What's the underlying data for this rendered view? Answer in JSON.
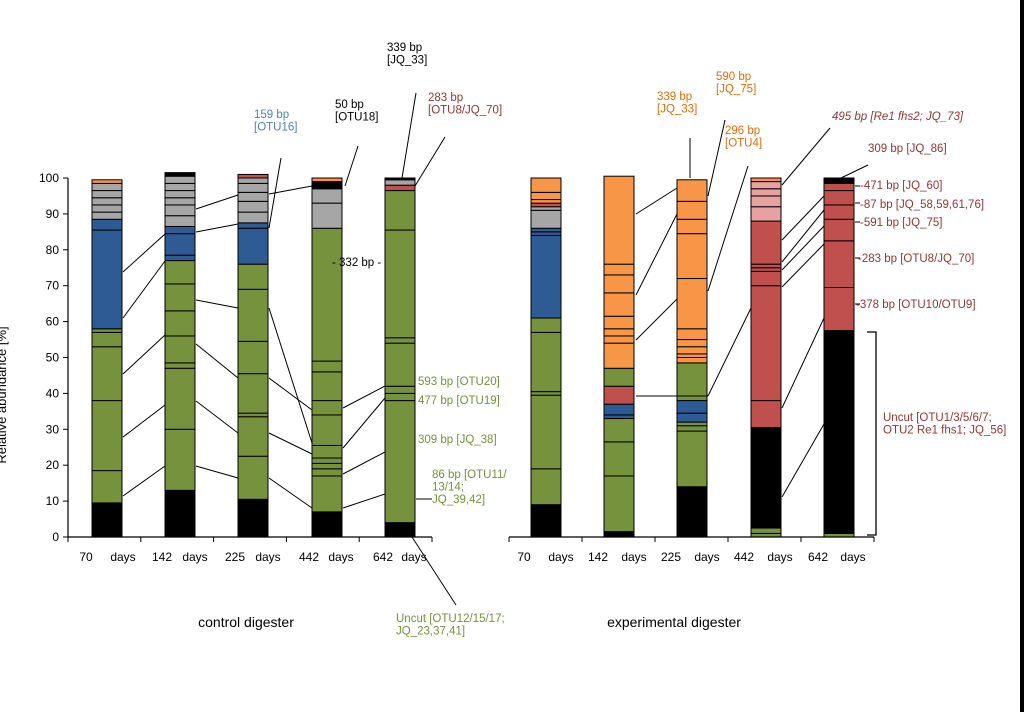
{
  "chart_data": {
    "type": "bar",
    "stacked": true,
    "ylabel": "Relative abundance [%]",
    "ylim": [
      0,
      100
    ],
    "yticks": [
      0,
      10,
      20,
      30,
      40,
      50,
      60,
      70,
      80,
      90,
      100
    ],
    "groups": [
      {
        "title": "control  digester",
        "categories": [
          {
            "num": "70",
            "unit": "days"
          },
          {
            "num": "142",
            "unit": "days"
          },
          {
            "num": "225",
            "unit": "days"
          },
          {
            "num": "442",
            "unit": "days"
          },
          {
            "num": "642",
            "unit": "days"
          }
        ],
        "bars": [
          {
            "segments": [
              {
                "v": 9.5,
                "c": "#000000"
              },
              {
                "v": 9,
                "c": "#76923c"
              },
              {
                "v": 19.5,
                "c": "#76923c"
              },
              {
                "v": 15,
                "c": "#76923c"
              },
              {
                "v": 4,
                "c": "#76923c"
              },
              {
                "v": 1,
                "c": "#76923c"
              },
              {
                "v": 27.5,
                "c": "#2e5b94"
              },
              {
                "v": 3,
                "c": "#2e5b94"
              },
              {
                "v": 2,
                "c": "#a6a6a6"
              },
              {
                "v": 2,
                "c": "#a6a6a6"
              },
              {
                "v": 2,
                "c": "#a6a6a6"
              },
              {
                "v": 2,
                "c": "#a6a6a6"
              },
              {
                "v": 2,
                "c": "#a6a6a6"
              },
              {
                "v": 1,
                "c": "#f79646"
              }
            ]
          },
          {
            "segments": [
              {
                "v": 13,
                "c": "#000000"
              },
              {
                "v": 17,
                "c": "#76923c"
              },
              {
                "v": 17,
                "c": "#76923c"
              },
              {
                "v": 1.5,
                "c": "#76923c"
              },
              {
                "v": 7.5,
                "c": "#76923c"
              },
              {
                "v": 7,
                "c": "#76923c"
              },
              {
                "v": 7.5,
                "c": "#76923c"
              },
              {
                "v": 6.5,
                "c": "#76923c"
              },
              {
                "v": 1.5,
                "c": "#2e5b94"
              },
              {
                "v": 6,
                "c": "#2e5b94"
              },
              {
                "v": 2,
                "c": "#2e5b94"
              },
              {
                "v": 3,
                "c": "#a6a6a6"
              },
              {
                "v": 3,
                "c": "#a6a6a6"
              },
              {
                "v": 2,
                "c": "#a6a6a6"
              },
              {
                "v": 2,
                "c": "#a6a6a6"
              },
              {
                "v": 2,
                "c": "#a6a6a6"
              },
              {
                "v": 2,
                "c": "#a6a6a6"
              },
              {
                "v": 1,
                "c": "#000000"
              }
            ]
          },
          {
            "segments": [
              {
                "v": 10.5,
                "c": "#000000"
              },
              {
                "v": 12,
                "c": "#76923c"
              },
              {
                "v": 11,
                "c": "#76923c"
              },
              {
                "v": 1,
                "c": "#76923c"
              },
              {
                "v": 11,
                "c": "#76923c"
              },
              {
                "v": 9,
                "c": "#76923c"
              },
              {
                "v": 14.5,
                "c": "#76923c"
              },
              {
                "v": 7,
                "c": "#76923c"
              },
              {
                "v": 10,
                "c": "#2e5b94"
              },
              {
                "v": 1.5,
                "c": "#2e5b94"
              },
              {
                "v": 3,
                "c": "#a6a6a6"
              },
              {
                "v": 3,
                "c": "#a6a6a6"
              },
              {
                "v": 2.5,
                "c": "#a6a6a6"
              },
              {
                "v": 2.5,
                "c": "#a6a6a6"
              },
              {
                "v": 1.5,
                "c": "#a6a6a6"
              },
              {
                "v": 1,
                "c": "#c0504d"
              }
            ]
          },
          {
            "segments": [
              {
                "v": 7,
                "c": "#000000"
              },
              {
                "v": 10,
                "c": "#76923c"
              },
              {
                "v": 2,
                "c": "#76923c"
              },
              {
                "v": 1.5,
                "c": "#76923c"
              },
              {
                "v": 1.5,
                "c": "#76923c"
              },
              {
                "v": 3.5,
                "c": "#76923c"
              },
              {
                "v": 8.5,
                "c": "#76923c"
              },
              {
                "v": 4,
                "c": "#76923c"
              },
              {
                "v": 8,
                "c": "#76923c"
              },
              {
                "v": 3,
                "c": "#76923c"
              },
              {
                "v": 37,
                "c": "#76923c"
              },
              {
                "v": 7,
                "c": "#a6a6a6"
              },
              {
                "v": 4,
                "c": "#a6a6a6"
              },
              {
                "v": 2,
                "c": "#000000"
              },
              {
                "v": 1,
                "c": "#f79646"
              }
            ]
          },
          {
            "segments": [
              {
                "v": 4,
                "c": "#000000"
              },
              {
                "v": 34,
                "c": "#76923c"
              },
              {
                "v": 2,
                "c": "#76923c"
              },
              {
                "v": 2,
                "c": "#76923c"
              },
              {
                "v": 12,
                "c": "#76923c"
              },
              {
                "v": 1.5,
                "c": "#76923c"
              },
              {
                "v": 30,
                "c": "#76923c"
              },
              {
                "v": 11,
                "c": "#76923c"
              },
              {
                "v": 1.5,
                "c": "#c0504d"
              },
              {
                "v": 1.5,
                "c": "#a6a6a6"
              },
              {
                "v": 0.5,
                "c": "#000000"
              }
            ]
          }
        ]
      },
      {
        "title": "experimental digester",
        "categories": [
          {
            "num": "70",
            "unit": "days"
          },
          {
            "num": "142",
            "unit": "days"
          },
          {
            "num": "225",
            "unit": "days"
          },
          {
            "num": "442",
            "unit": "days"
          },
          {
            "num": "642",
            "unit": "days"
          }
        ],
        "bars": [
          {
            "segments": [
              {
                "v": 9,
                "c": "#000000"
              },
              {
                "v": 10,
                "c": "#76923c"
              },
              {
                "v": 20.5,
                "c": "#76923c"
              },
              {
                "v": 1,
                "c": "#76923c"
              },
              {
                "v": 16.5,
                "c": "#76923c"
              },
              {
                "v": 4,
                "c": "#76923c"
              },
              {
                "v": 23,
                "c": "#2e5b94"
              },
              {
                "v": 1,
                "c": "#2e5b94"
              },
              {
                "v": 1,
                "c": "#2e5b94"
              },
              {
                "v": 5,
                "c": "#a6a6a6"
              },
              {
                "v": 1,
                "c": "#a6a6a6"
              },
              {
                "v": 1,
                "c": "#c0504d"
              },
              {
                "v": 1,
                "c": "#f79646"
              },
              {
                "v": 2,
                "c": "#f79646"
              },
              {
                "v": 4,
                "c": "#f79646"
              }
            ]
          },
          {
            "segments": [
              {
                "v": 1.5,
                "c": "#000000"
              },
              {
                "v": 15.5,
                "c": "#76923c"
              },
              {
                "v": 9.5,
                "c": "#76923c"
              },
              {
                "v": 6.5,
                "c": "#76923c"
              },
              {
                "v": 1,
                "c": "#2e5b94"
              },
              {
                "v": 3,
                "c": "#2e5b94"
              },
              {
                "v": 5,
                "c": "#c0504d"
              },
              {
                "v": 5,
                "c": "#76923c"
              },
              {
                "v": 7,
                "c": "#f79646"
              },
              {
                "v": 2,
                "c": "#f79646"
              },
              {
                "v": 2,
                "c": "#f79646"
              },
              {
                "v": 3.5,
                "c": "#f79646"
              },
              {
                "v": 6.5,
                "c": "#f79646"
              },
              {
                "v": 5,
                "c": "#f79646"
              },
              {
                "v": 3,
                "c": "#f79646"
              },
              {
                "v": 24.5,
                "c": "#f79646"
              }
            ]
          },
          {
            "segments": [
              {
                "v": 14,
                "c": "#000000"
              },
              {
                "v": 15.5,
                "c": "#76923c"
              },
              {
                "v": 1.5,
                "c": "#76923c"
              },
              {
                "v": 1,
                "c": "#76923c"
              },
              {
                "v": 2.5,
                "c": "#2e5b94"
              },
              {
                "v": 3.5,
                "c": "#2e5b94"
              },
              {
                "v": 10.5,
                "c": "#76923c"
              },
              {
                "v": 1.5,
                "c": "#f79646"
              },
              {
                "v": 1,
                "c": "#f79646"
              },
              {
                "v": 2,
                "c": "#f79646"
              },
              {
                "v": 2,
                "c": "#f79646"
              },
              {
                "v": 3,
                "c": "#f79646"
              },
              {
                "v": 14,
                "c": "#f79646"
              },
              {
                "v": 12.5,
                "c": "#f79646"
              },
              {
                "v": 4,
                "c": "#f79646"
              },
              {
                "v": 5,
                "c": "#f79646"
              },
              {
                "v": 6,
                "c": "#f79646"
              }
            ]
          },
          {
            "segments": [
              {
                "v": 1,
                "c": "#76923c"
              },
              {
                "v": 1.5,
                "c": "#76923c"
              },
              {
                "v": 28,
                "c": "#000000"
              },
              {
                "v": 7.5,
                "c": "#c0504d"
              },
              {
                "v": 32,
                "c": "#c0504d"
              },
              {
                "v": 4,
                "c": "#c0504d"
              },
              {
                "v": 1,
                "c": "#c0504d"
              },
              {
                "v": 1,
                "c": "#c0504d"
              },
              {
                "v": 12,
                "c": "#c0504d"
              },
              {
                "v": 4,
                "c": "#e6a1a0"
              },
              {
                "v": 3,
                "c": "#e6a1a0"
              },
              {
                "v": 2,
                "c": "#e6a1a0"
              },
              {
                "v": 2,
                "c": "#e6a1a0"
              },
              {
                "v": 1,
                "c": "#f79646"
              }
            ]
          },
          {
            "segments": [
              {
                "v": 1,
                "c": "#76923c"
              },
              {
                "v": 56.5,
                "c": "#000000"
              },
              {
                "v": 12,
                "c": "#c0504d"
              },
              {
                "v": 13,
                "c": "#c0504d"
              },
              {
                "v": 6,
                "c": "#c0504d"
              },
              {
                "v": 4,
                "c": "#c0504d"
              },
              {
                "v": 4,
                "c": "#c0504d"
              },
              {
                "v": 2,
                "c": "#c0504d"
              },
              {
                "v": 1.5,
                "c": "#000000"
              }
            ]
          }
        ]
      }
    ],
    "annotations": {
      "control": [
        {
          "id": "a_159",
          "lines": [
            "159 bp",
            "[OTU16]"
          ],
          "color": "#4f81bd"
        },
        {
          "id": "a_50",
          "lines": [
            "50 bp",
            "[OTU18]"
          ],
          "color": "#000000"
        },
        {
          "id": "a_339c",
          "lines": [
            "339 bp",
            "[JQ_33]"
          ],
          "color": "#000000"
        },
        {
          "id": "a_283c",
          "lines": [
            "283 bp",
            "[OTU8/JQ_70]"
          ],
          "color": "#943634"
        },
        {
          "id": "a_332",
          "lines": [
            "- 332 bp -"
          ],
          "color": "#000000"
        },
        {
          "id": "a_593",
          "lines": [
            "593 bp [OTU20]"
          ],
          "color": "#76923c"
        },
        {
          "id": "a_477",
          "lines": [
            "477 bp [OTU19]"
          ],
          "color": "#76923c"
        },
        {
          "id": "a_309c",
          "lines": [
            "309 bp [JQ_38]"
          ],
          "color": "#76923c"
        },
        {
          "id": "a_86",
          "lines": [
            "86 bp [OTU11/",
            "13/14;",
            "JQ_39,42]"
          ],
          "color": "#76923c"
        },
        {
          "id": "a_uncut_c",
          "lines": [
            "Uncut [OTU12/15/17;",
            "JQ_23,37,41]"
          ],
          "color": "#76923c"
        }
      ],
      "experimental": [
        {
          "id": "a_339e",
          "lines": [
            "339 bp",
            "[JQ_33]"
          ],
          "color": "#e36c09"
        },
        {
          "id": "a_590",
          "lines": [
            "590 bp",
            "[JQ_75]"
          ],
          "color": "#e36c09"
        },
        {
          "id": "a_296",
          "lines": [
            "296 bp",
            "[OTU4]"
          ],
          "color": "#e36c09"
        },
        {
          "id": "a_495",
          "lines": [
            "495 bp [Re1 fhs2; JQ_73]"
          ],
          "color": "#943634"
        },
        {
          "id": "a_309e",
          "lines": [
            "309 bp [JQ_86]"
          ],
          "color": "#943634"
        },
        {
          "id": "a_471",
          "lines": [
            "-471 bp [JQ_60]"
          ],
          "color": "#943634"
        },
        {
          "id": "a_87",
          "lines": [
            "-87 bp [JQ_58,59,61,76]"
          ],
          "color": "#943634"
        },
        {
          "id": "a_591",
          "lines": [
            "-591 bp [JQ_75]"
          ],
          "color": "#943634"
        },
        {
          "id": "a_283e",
          "lines": [
            "-283 bp [OTU8/JQ_70]"
          ],
          "color": "#943634"
        },
        {
          "id": "a_378",
          "lines": [
            "-378 bp [OTU10/OTU9]"
          ],
          "color": "#943634"
        },
        {
          "id": "a_uncut_e",
          "lines": [
            "Uncut [OTU1/3/5/6/7;",
            "OTU2 Re1 fhs1; JQ_56]"
          ],
          "color": "#943634"
        }
      ]
    }
  },
  "colors": {
    "black": "#000000",
    "green": "#76923c",
    "blue": "#2e5b94",
    "grey": "#a6a6a6",
    "orange": "#f79646",
    "red": "#c0504d",
    "pink": "#e6a1a0"
  }
}
